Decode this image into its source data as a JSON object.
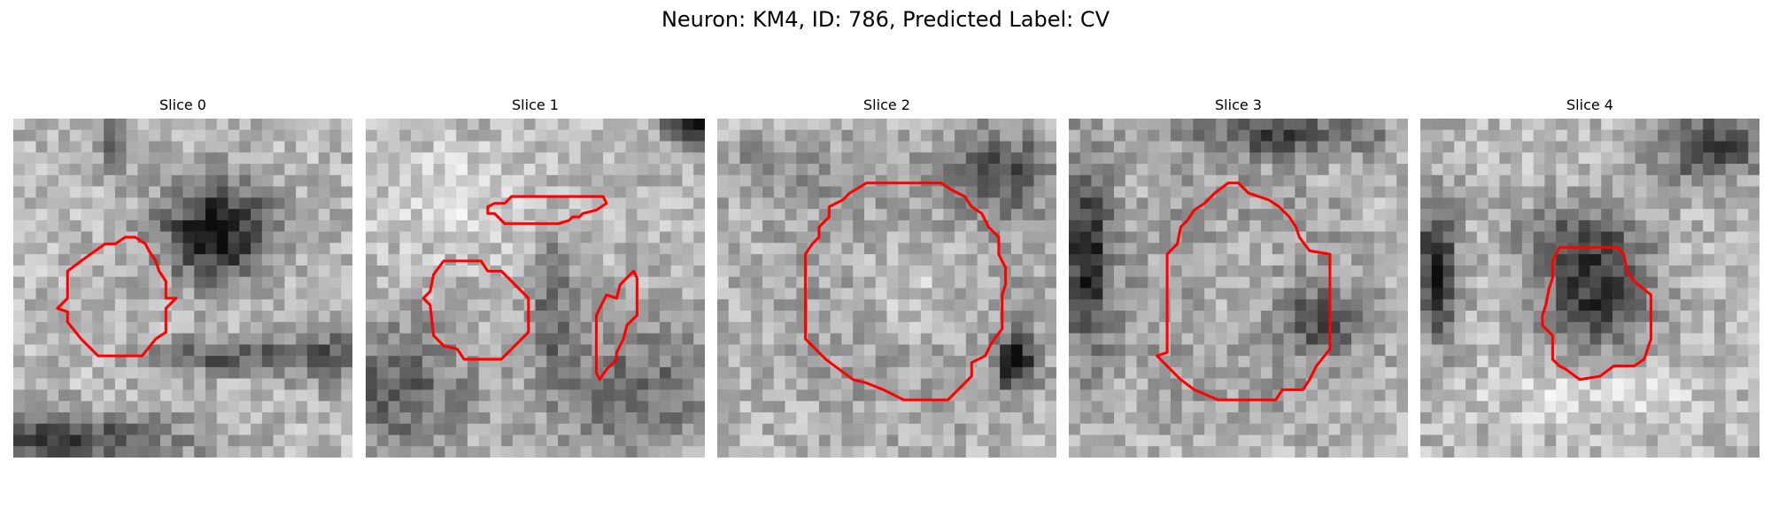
{
  "figure": {
    "title": "Neuron: KM4, ID: 786, Predicted Label: CV"
  },
  "contour_color": "#ff0000",
  "panels": [
    {
      "title": "Slice 0",
      "seed": 11,
      "blobs": [
        [
          0.6,
          0.33,
          0.16,
          0.15,
          -0.65
        ],
        [
          0.15,
          0.95,
          0.35,
          0.08,
          -0.45
        ],
        [
          0.65,
          0.7,
          0.22,
          0.05,
          -0.4
        ],
        [
          0.3,
          0.05,
          0.06,
          0.1,
          -0.3
        ],
        [
          0.95,
          0.7,
          0.12,
          0.1,
          -0.3
        ]
      ],
      "contours": [
        [
          [
            0.27,
            0.37
          ],
          [
            0.3,
            0.37
          ],
          [
            0.33,
            0.35
          ],
          [
            0.36,
            0.35
          ],
          [
            0.39,
            0.37
          ],
          [
            0.4,
            0.39
          ],
          [
            0.42,
            0.42
          ],
          [
            0.43,
            0.45
          ],
          [
            0.45,
            0.48
          ],
          [
            0.45,
            0.53
          ],
          [
            0.48,
            0.53
          ],
          [
            0.45,
            0.56
          ],
          [
            0.45,
            0.63
          ],
          [
            0.42,
            0.65
          ],
          [
            0.38,
            0.7
          ],
          [
            0.25,
            0.7
          ],
          [
            0.2,
            0.65
          ],
          [
            0.16,
            0.6
          ],
          [
            0.16,
            0.57
          ],
          [
            0.13,
            0.56
          ],
          [
            0.16,
            0.53
          ],
          [
            0.16,
            0.45
          ],
          [
            0.2,
            0.42
          ]
        ]
      ]
    },
    {
      "title": "Slice 1",
      "seed": 23,
      "blobs": [
        [
          0.97,
          0.02,
          0.08,
          0.06,
          -0.75
        ],
        [
          0.1,
          0.8,
          0.2,
          0.2,
          -0.35
        ],
        [
          0.8,
          0.8,
          0.25,
          0.2,
          -0.3
        ],
        [
          0.55,
          0.55,
          0.06,
          0.25,
          -0.3
        ],
        [
          0.3,
          0.25,
          0.25,
          0.15,
          0.15
        ]
      ],
      "contours": [
        [
          [
            0.43,
            0.23
          ],
          [
            0.7,
            0.23
          ],
          [
            0.71,
            0.25
          ],
          [
            0.68,
            0.27
          ],
          [
            0.64,
            0.28
          ],
          [
            0.63,
            0.29
          ],
          [
            0.61,
            0.29
          ],
          [
            0.6,
            0.3
          ],
          [
            0.57,
            0.31
          ],
          [
            0.41,
            0.31
          ],
          [
            0.38,
            0.28
          ],
          [
            0.36,
            0.28
          ],
          [
            0.36,
            0.26
          ],
          [
            0.38,
            0.25
          ],
          [
            0.41,
            0.25
          ]
        ],
        [
          [
            0.23,
            0.42
          ],
          [
            0.34,
            0.42
          ],
          [
            0.36,
            0.45
          ],
          [
            0.4,
            0.45
          ],
          [
            0.45,
            0.5
          ],
          [
            0.48,
            0.53
          ],
          [
            0.48,
            0.63
          ],
          [
            0.45,
            0.66
          ],
          [
            0.4,
            0.71
          ],
          [
            0.29,
            0.71
          ],
          [
            0.27,
            0.68
          ],
          [
            0.23,
            0.67
          ],
          [
            0.2,
            0.64
          ],
          [
            0.19,
            0.55
          ],
          [
            0.17,
            0.53
          ],
          [
            0.19,
            0.51
          ],
          [
            0.2,
            0.46
          ]
        ],
        [
          [
            0.79,
            0.45
          ],
          [
            0.8,
            0.47
          ],
          [
            0.8,
            0.58
          ],
          [
            0.77,
            0.61
          ],
          [
            0.76,
            0.65
          ],
          [
            0.74,
            0.69
          ],
          [
            0.74,
            0.71
          ],
          [
            0.71,
            0.74
          ],
          [
            0.69,
            0.77
          ],
          [
            0.68,
            0.75
          ],
          [
            0.68,
            0.58
          ],
          [
            0.71,
            0.52
          ],
          [
            0.74,
            0.53
          ],
          [
            0.75,
            0.49
          ],
          [
            0.77,
            0.47
          ]
        ]
      ]
    },
    {
      "title": "Slice 2",
      "seed": 37,
      "blobs": [
        [
          0.58,
          0.5,
          0.31,
          0.31,
          -0.5
        ],
        [
          0.58,
          0.5,
          0.24,
          0.24,
          0.55
        ],
        [
          0.85,
          0.15,
          0.15,
          0.12,
          -0.35
        ],
        [
          0.88,
          0.72,
          0.06,
          0.08,
          -0.6
        ],
        [
          0.15,
          0.15,
          0.18,
          0.1,
          -0.15
        ]
      ],
      "contours": [
        [
          [
            0.44,
            0.19
          ],
          [
            0.66,
            0.19
          ],
          [
            0.69,
            0.21
          ],
          [
            0.73,
            0.23
          ],
          [
            0.75,
            0.26
          ],
          [
            0.78,
            0.28
          ],
          [
            0.8,
            0.32
          ],
          [
            0.83,
            0.35
          ],
          [
            0.83,
            0.4
          ],
          [
            0.85,
            0.44
          ],
          [
            0.85,
            0.49
          ],
          [
            0.84,
            0.52
          ],
          [
            0.84,
            0.62
          ],
          [
            0.81,
            0.66
          ],
          [
            0.79,
            0.7
          ],
          [
            0.75,
            0.72
          ],
          [
            0.75,
            0.76
          ],
          [
            0.71,
            0.8
          ],
          [
            0.68,
            0.83
          ],
          [
            0.55,
            0.83
          ],
          [
            0.49,
            0.8
          ],
          [
            0.44,
            0.78
          ],
          [
            0.4,
            0.77
          ],
          [
            0.36,
            0.74
          ],
          [
            0.32,
            0.71
          ],
          [
            0.28,
            0.67
          ],
          [
            0.26,
            0.65
          ],
          [
            0.26,
            0.4
          ],
          [
            0.28,
            0.37
          ],
          [
            0.3,
            0.35
          ],
          [
            0.3,
            0.32
          ],
          [
            0.33,
            0.29
          ],
          [
            0.33,
            0.26
          ],
          [
            0.37,
            0.24
          ],
          [
            0.39,
            0.22
          ]
        ]
      ]
    },
    {
      "title": "Slice 3",
      "seed": 53,
      "blobs": [
        [
          0.5,
          0.5,
          0.26,
          0.3,
          -0.5
        ],
        [
          0.5,
          0.5,
          0.2,
          0.23,
          0.5
        ],
        [
          0.05,
          0.4,
          0.08,
          0.3,
          -0.55
        ],
        [
          0.65,
          0.05,
          0.3,
          0.06,
          -0.4
        ],
        [
          0.75,
          0.6,
          0.15,
          0.1,
          -0.3
        ]
      ],
      "contours": [
        [
          [
            0.47,
            0.19
          ],
          [
            0.5,
            0.19
          ],
          [
            0.53,
            0.22
          ],
          [
            0.59,
            0.24
          ],
          [
            0.62,
            0.26
          ],
          [
            0.65,
            0.29
          ],
          [
            0.67,
            0.32
          ],
          [
            0.68,
            0.35
          ],
          [
            0.71,
            0.39
          ],
          [
            0.77,
            0.4
          ],
          [
            0.77,
            0.68
          ],
          [
            0.73,
            0.73
          ],
          [
            0.71,
            0.77
          ],
          [
            0.69,
            0.8
          ],
          [
            0.63,
            0.8
          ],
          [
            0.61,
            0.83
          ],
          [
            0.44,
            0.83
          ],
          [
            0.37,
            0.8
          ],
          [
            0.33,
            0.77
          ],
          [
            0.3,
            0.74
          ],
          [
            0.26,
            0.7
          ],
          [
            0.29,
            0.69
          ],
          [
            0.29,
            0.4
          ],
          [
            0.32,
            0.37
          ],
          [
            0.33,
            0.32
          ],
          [
            0.35,
            0.3
          ],
          [
            0.37,
            0.27
          ],
          [
            0.4,
            0.25
          ],
          [
            0.43,
            0.22
          ]
        ]
      ]
    },
    {
      "title": "Slice 4",
      "seed": 71,
      "blobs": [
        [
          0.52,
          0.52,
          0.16,
          0.17,
          -0.5
        ],
        [
          0.05,
          0.45,
          0.06,
          0.2,
          -0.6
        ],
        [
          0.85,
          0.08,
          0.15,
          0.1,
          -0.5
        ],
        [
          0.45,
          0.35,
          0.2,
          0.1,
          -0.25
        ],
        [
          0.5,
          0.8,
          0.3,
          0.1,
          0.15
        ]
      ],
      "contours": [
        [
          [
            0.41,
            0.38
          ],
          [
            0.58,
            0.38
          ],
          [
            0.6,
            0.4
          ],
          [
            0.61,
            0.45
          ],
          [
            0.63,
            0.48
          ],
          [
            0.68,
            0.52
          ],
          [
            0.68,
            0.65
          ],
          [
            0.66,
            0.71
          ],
          [
            0.63,
            0.73
          ],
          [
            0.57,
            0.73
          ],
          [
            0.53,
            0.76
          ],
          [
            0.47,
            0.77
          ],
          [
            0.43,
            0.74
          ],
          [
            0.41,
            0.73
          ],
          [
            0.39,
            0.71
          ],
          [
            0.39,
            0.64
          ],
          [
            0.36,
            0.61
          ],
          [
            0.36,
            0.58
          ],
          [
            0.37,
            0.55
          ],
          [
            0.38,
            0.5
          ],
          [
            0.39,
            0.47
          ],
          [
            0.39,
            0.42
          ]
        ]
      ]
    }
  ]
}
